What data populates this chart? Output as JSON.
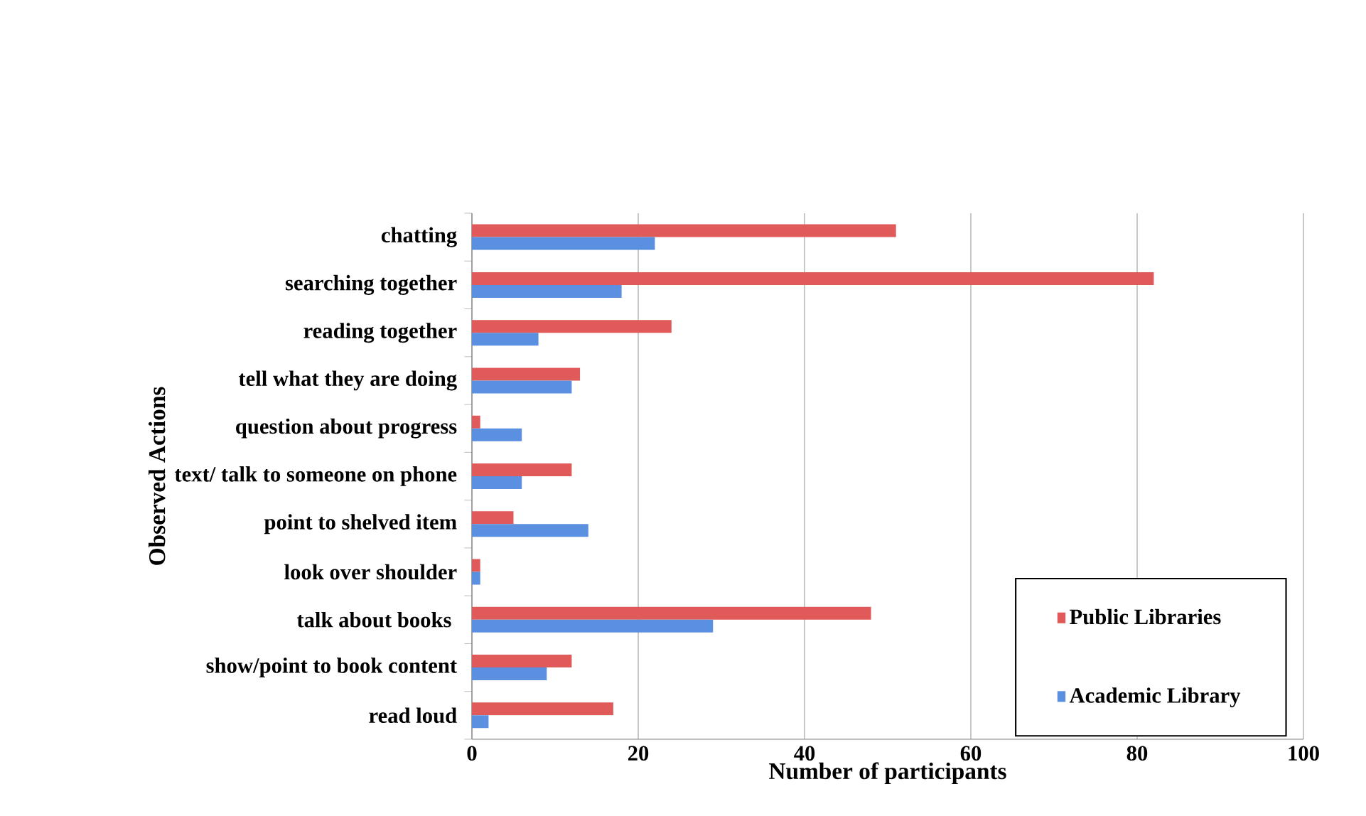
{
  "chart_data": {
    "type": "bar",
    "orientation": "horizontal",
    "ylabel": "Observed Actions",
    "xlabel": "Number of participants",
    "categories": [
      "chatting",
      "searching together",
      "reading together",
      "tell what they are doing",
      "question about progress",
      "text/ talk to someone on phone",
      "point to shelved item",
      "look over shoulder",
      "talk about books ",
      "show/point to book content",
      "read loud"
    ],
    "series": [
      {
        "name": "Public Libraries",
        "color": "#e05a5a",
        "values": [
          51,
          82,
          24,
          13,
          1,
          12,
          5,
          1,
          48,
          12,
          17
        ]
      },
      {
        "name": "Academic Library",
        "color": "#5b8fe0",
        "values": [
          22,
          18,
          8,
          12,
          6,
          6,
          14,
          1,
          29,
          9,
          2
        ]
      }
    ],
    "xlim": [
      0,
      100
    ],
    "xticks": [
      0,
      20,
      40,
      60,
      80,
      100
    ],
    "grid": "x",
    "legend": "bottom right"
  }
}
